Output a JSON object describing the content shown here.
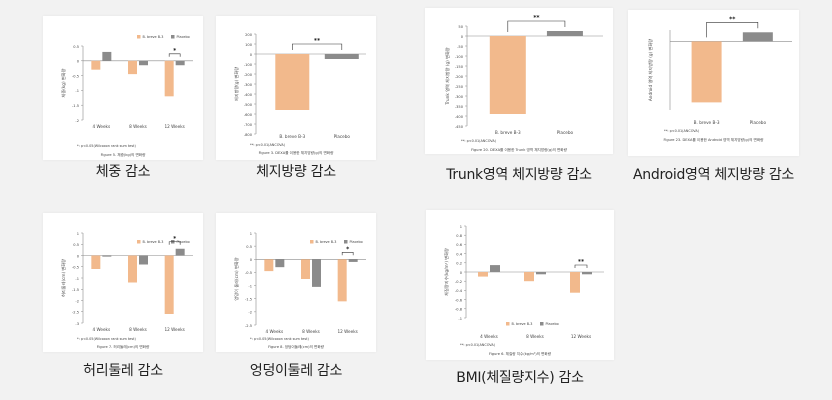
{
  "colors": {
    "bar_a": "#f2b98c",
    "bar_b": "#8b8b8b",
    "axis": "#8a8a8a",
    "text": "#444444",
    "bg": "#f2f2f2",
    "card": "#ffffff"
  },
  "chart_data": [
    {
      "type": "bar",
      "caption": "체중 감소",
      "ylabel": "체중(kg) 변화량",
      "yticks": [
        0.5,
        0,
        -0.5,
        -1,
        -1.5,
        -2
      ],
      "ylim": [
        -2,
        0.5
      ],
      "categories": [
        "4 Weeks",
        "8 Weeks",
        "12 Weeks"
      ],
      "series": [
        {
          "name": "B. breve B-3",
          "values": [
            -0.3,
            -0.45,
            -1.2
          ]
        },
        {
          "name": "Placebo",
          "values": [
            0.3,
            -0.15,
            -0.15
          ]
        }
      ],
      "legend_position": "top-right",
      "significance": [
        {
          "category_index": 2,
          "label": "*"
        }
      ],
      "footnote": "*: p<0.05(Wilcoxon rank sum test)",
      "figure_caption": "Figure 5. 체중(kg)의 변화량"
    },
    {
      "type": "bar",
      "caption": "체지방량 감소",
      "ylabel": "체지방량(g) 변화량",
      "yticks": [
        200,
        100,
        0,
        -100,
        -200,
        -300,
        -400,
        -500,
        -600,
        -700,
        -800
      ],
      "ylim": [
        -800,
        200
      ],
      "categories": [
        "B. breve B-3",
        "Placebo"
      ],
      "series": [
        {
          "name": "",
          "values": [
            -560,
            -50
          ]
        }
      ],
      "significance": [
        {
          "category_index": 0,
          "label": "**",
          "span_to": 1
        }
      ],
      "footnote": "**: p<0.01(ANCOVA)",
      "figure_caption": "Figure 3. DEXA를 이용한 체지방량(g)의 변화량"
    },
    {
      "type": "bar",
      "caption": "Trunk영역 체지방량 감소",
      "ylabel": "Trunk 영역 체지방량 (g) 변화량",
      "yticks": [
        50,
        0,
        -50,
        -100,
        -150,
        -200,
        -250,
        -300,
        -350,
        -400,
        -450
      ],
      "ylim": [
        -450,
        50
      ],
      "categories": [
        "B. breve B-3",
        "Placebo"
      ],
      "series": [
        {
          "name": "",
          "values": [
            -390,
            25
          ]
        }
      ],
      "significance": [
        {
          "category_index": 0,
          "label": "**",
          "span_to": 1
        }
      ],
      "footnote": "**: p<0.01(ANCOVA)",
      "figure_caption": "Figure 20. DEXA를 이용한 Trunk 영역 체지방량(g)의 변화량"
    },
    {
      "type": "bar",
      "caption": "Android영역 체지방량 감소",
      "ylabel": "Android 영역 체지방량 (g) 변화량",
      "yticks": [],
      "ylim": [
        -90,
        15
      ],
      "categories": [
        "B. breve B-3",
        "Placebo"
      ],
      "series": [
        {
          "name": "",
          "values": [
            -80,
            12
          ]
        }
      ],
      "significance": [
        {
          "category_index": 0,
          "label": "**",
          "span_to": 1
        }
      ],
      "footnote": "**: p<0.01(ANCOVA)",
      "figure_caption": "Figure 23. DEXA를 이용한 Android 영역 체지방량(g)의 변화량"
    },
    {
      "type": "bar",
      "caption": "허리둘레 감소",
      "ylabel": "허리둘레(cm) 변화량",
      "yticks": [
        1,
        0.5,
        0,
        -0.5,
        -1,
        -1.5,
        -2,
        -2.5,
        -3
      ],
      "ylim": [
        -3,
        1
      ],
      "categories": [
        "4 Weeks",
        "8 Weeks",
        "12 Weeks"
      ],
      "series": [
        {
          "name": "B. breve B-3",
          "values": [
            -0.6,
            -1.2,
            -2.6
          ]
        },
        {
          "name": "Placebo",
          "values": [
            -0.05,
            -0.4,
            0.3
          ]
        }
      ],
      "legend_position": "top-right",
      "significance": [
        {
          "category_index": 2,
          "label": "*"
        }
      ],
      "footnote": "*: p<0.05(Wilcoxon rank sum test)",
      "figure_caption": "Figure 7. 허리둘레(cm)의 변화량"
    },
    {
      "type": "bar",
      "caption": "엉덩이둘레 감소",
      "ylabel": "엉덩이 둘레(cm) 변화량",
      "yticks": [
        1,
        0.5,
        0,
        -0.5,
        -1,
        -1.5,
        -2,
        -2.5
      ],
      "ylim": [
        -2.5,
        1
      ],
      "categories": [
        "4 Weeks",
        "8 Weeks",
        "12 Weeks"
      ],
      "series": [
        {
          "name": "B. breve B-3",
          "values": [
            -0.45,
            -0.75,
            -1.6
          ]
        },
        {
          "name": "Placebo",
          "values": [
            -0.3,
            -1.05,
            -0.1
          ]
        }
      ],
      "legend_position": "top-right",
      "significance": [
        {
          "category_index": 2,
          "label": "*"
        }
      ],
      "footnote": "*: p<0.05(Wilcoxon rank sum test)",
      "figure_caption": "Figure 8. 엉덩이둘레(cm)의 변화량"
    },
    {
      "type": "bar",
      "caption": "BMI(체질량지수) 감소",
      "ylabel": "체질량지수(kg/m²) 변화량",
      "yticks": [
        1,
        0.8,
        0.6,
        0.4,
        0.2,
        0,
        -0.2,
        -0.4,
        -0.6,
        -0.8,
        -1
      ],
      "ylim": [
        -1,
        1
      ],
      "categories": [
        "4 Weeks",
        "8 Weeks",
        "12 Weeks"
      ],
      "series": [
        {
          "name": "B. breve B-3",
          "values": [
            -0.1,
            -0.2,
            -0.45
          ]
        },
        {
          "name": "Placebo",
          "values": [
            0.15,
            -0.05,
            -0.05
          ]
        }
      ],
      "legend_position": "bottom",
      "significance": [
        {
          "category_index": 2,
          "label": "**"
        }
      ],
      "footnote": "**: p<0.01(ANCOVA)",
      "figure_caption": "Figure 6. 체질량 지수(kg/m²)의 변화량"
    }
  ]
}
